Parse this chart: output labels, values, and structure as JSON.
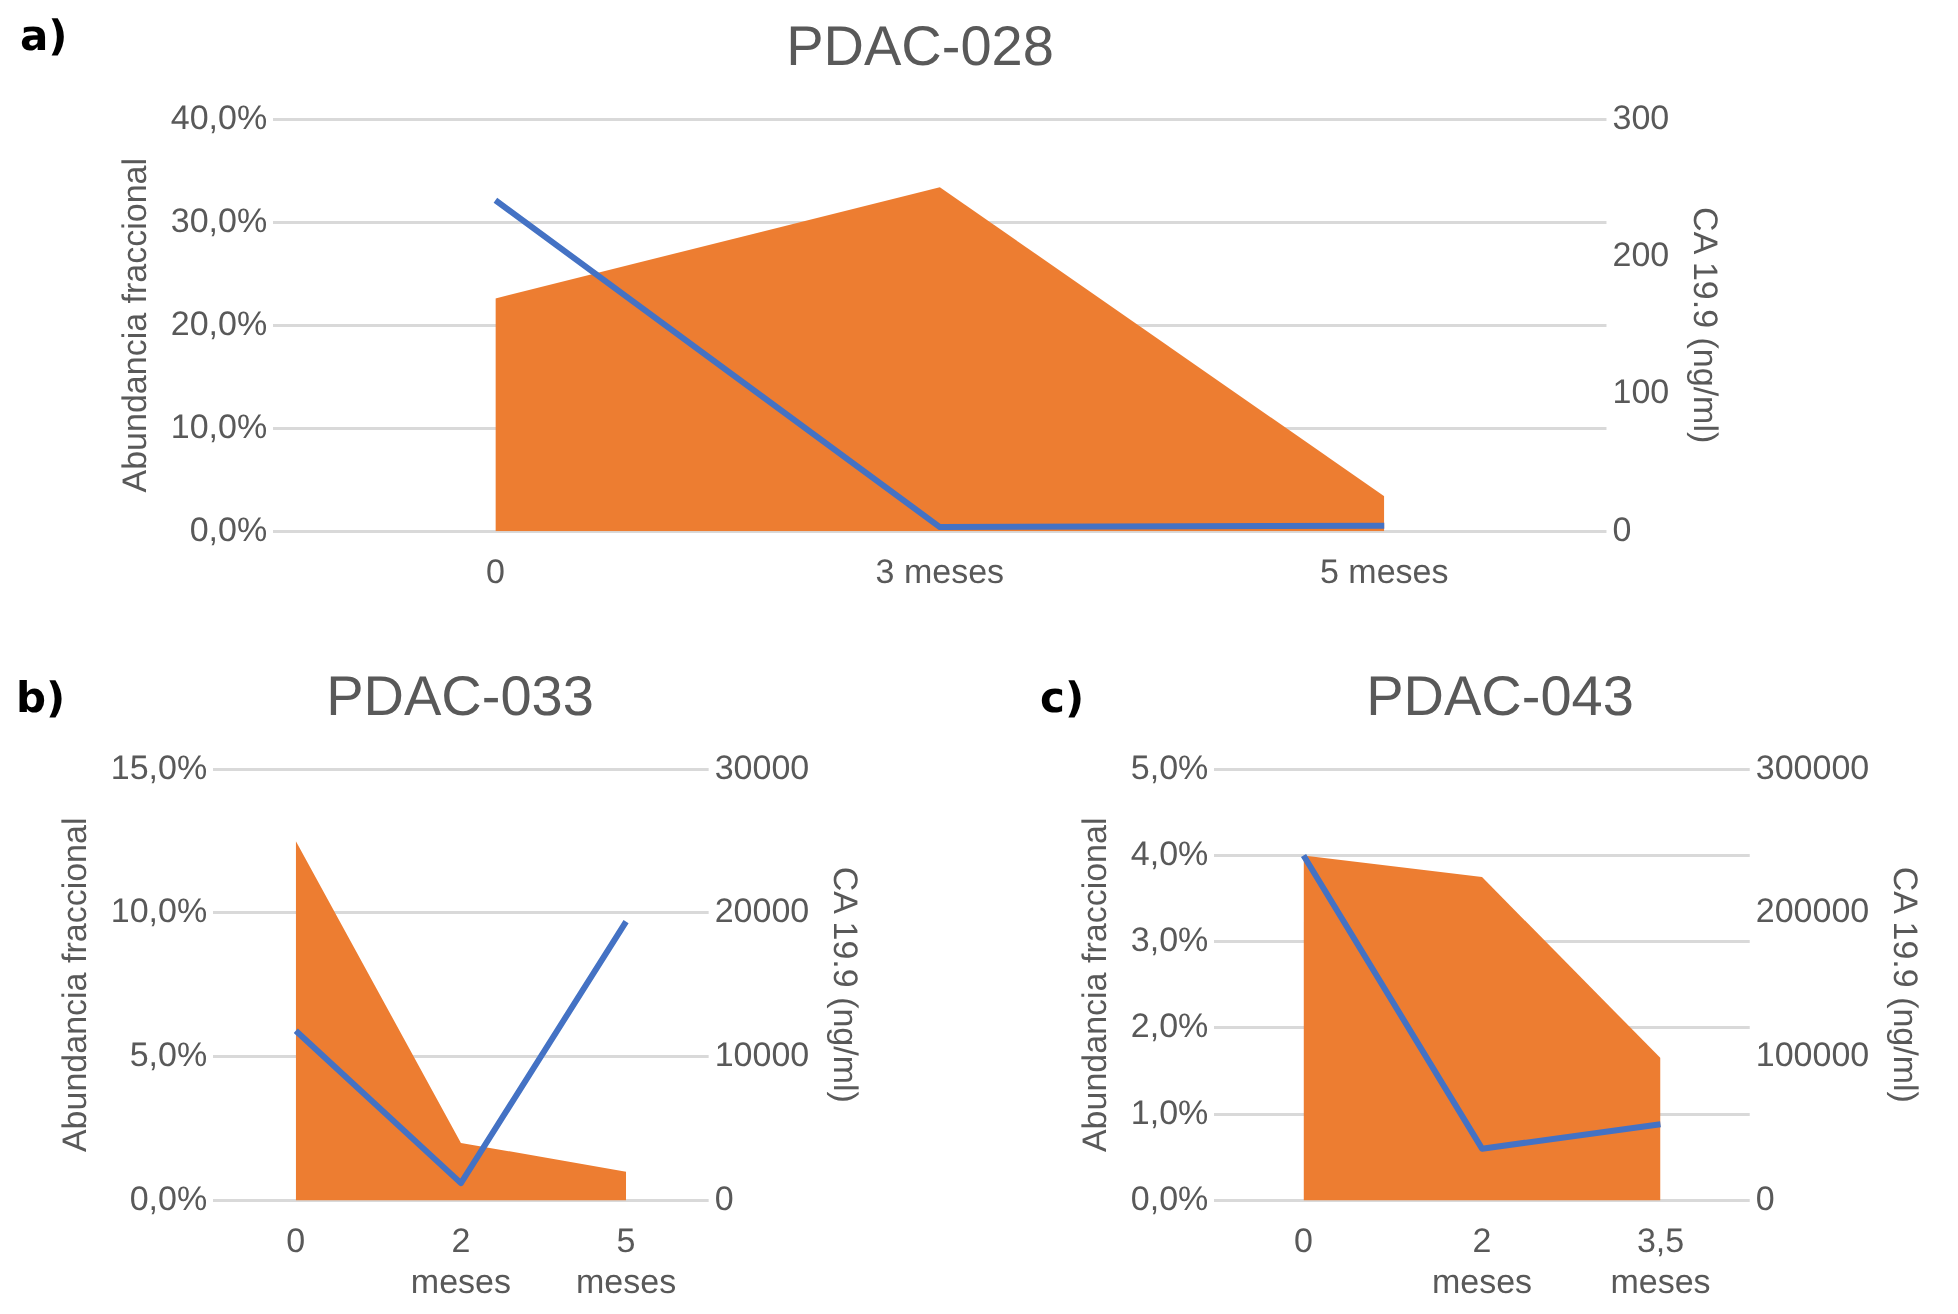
{
  "chart_data": [
    {
      "type": "area",
      "title": "PDAC-028",
      "ylabel": "Abundancia fraccional",
      "y2label": "CA 19.9 (ng/ml)",
      "annotations": [
        "a)"
      ],
      "categories": [
        "0",
        "3 meses",
        "5 meses"
      ],
      "series": [
        {
          "type": "area",
          "color": "#ed7d31",
          "values": [
            22.6,
            33.4,
            3.4
          ]
        },
        {
          "type": "line",
          "color": "#4472c4",
          "axis": "y2",
          "values": [
            241,
            3,
            4
          ]
        }
      ],
      "ylim": [
        0,
        40
      ],
      "yticks": [
        {
          "value": 0,
          "label": "0,0%"
        },
        {
          "value": 10,
          "label": "10,0%"
        },
        {
          "value": 20,
          "label": "20,0%"
        },
        {
          "value": 30,
          "label": "30,0%"
        },
        {
          "value": 40,
          "label": "40,0%"
        }
      ],
      "y2lim": [
        0,
        300
      ],
      "y2ticks": [
        0,
        100,
        200,
        300
      ],
      "grid": "y",
      "legend": false,
      "marker": "none"
    },
    {
      "type": "area",
      "title": "PDAC-033",
      "ylabel": "Abundancia fraccional",
      "y2label": "CA 19.9 (ng/ml)",
      "annotations": [
        "b)"
      ],
      "categories": [
        "0",
        "2 meses",
        "5 meses"
      ],
      "series": [
        {
          "type": "area",
          "color": "#ed7d31",
          "values": [
            12.5,
            2.0,
            1.0
          ]
        },
        {
          "type": "line",
          "color": "#4472c4",
          "axis": "y2",
          "values": [
            11800,
            1200,
            19400
          ]
        }
      ],
      "ylim": [
        0,
        15
      ],
      "yticks": [
        {
          "value": 0,
          "label": "0,0%"
        },
        {
          "value": 5,
          "label": "5,0%"
        },
        {
          "value": 10,
          "label": "10,0%"
        },
        {
          "value": 15,
          "label": "15,0%"
        }
      ],
      "y2lim": [
        0,
        30000
      ],
      "y2ticks": [
        0,
        10000,
        20000,
        30000
      ],
      "grid": "y",
      "legend": false,
      "marker": "none"
    },
    {
      "type": "area",
      "title": "PDAC-043",
      "ylabel": "Abundancia fraccional",
      "y2label": "CA 19.9 (ng/ml)",
      "annotations": [
        "c)"
      ],
      "categories": [
        "0",
        "2 meses",
        "3,5 meses"
      ],
      "series": [
        {
          "type": "area",
          "color": "#ed7d31",
          "values": [
            4.0,
            3.75,
            1.65
          ]
        },
        {
          "type": "line",
          "color": "#4472c4",
          "axis": "y2",
          "values": [
            240000,
            36000,
            53000
          ]
        }
      ],
      "ylim": [
        0,
        5
      ],
      "yticks": [
        {
          "value": 0,
          "label": "0,0%"
        },
        {
          "value": 1,
          "label": "1,0%"
        },
        {
          "value": 2,
          "label": "2,0%"
        },
        {
          "value": 3,
          "label": "3,0%"
        },
        {
          "value": 4,
          "label": "4,0%"
        },
        {
          "value": 5,
          "label": "5,0%"
        }
      ],
      "y2lim": [
        0,
        300000
      ],
      "y2ticks": [
        0,
        100000,
        200000,
        300000
      ],
      "grid": "y",
      "legend": false,
      "marker": "none"
    }
  ]
}
